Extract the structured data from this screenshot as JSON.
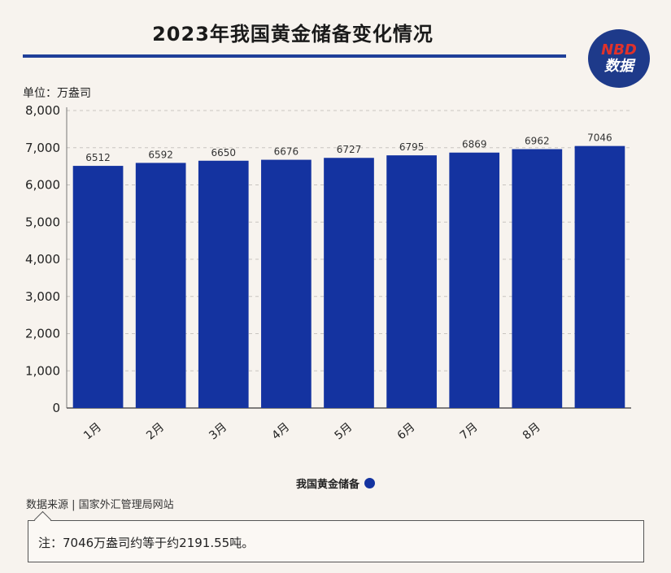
{
  "header": {
    "title": "2023年我国黄金储备变化情况",
    "logo_brand": "NBD",
    "logo_sub": "数据"
  },
  "unit_label": "单位：万盎司",
  "legend": {
    "label": "我国黄金储备"
  },
  "source": "数据来源 | 国家外汇管理局网站",
  "note": "注：7046万盎司约等于约2191.55吨。",
  "colors": {
    "bar": "#1433a0",
    "accent": "#1f3f99",
    "logo_red": "#e0322b"
  },
  "chart_data": {
    "type": "bar",
    "title": "2023年我国黄金储备变化情况",
    "ylabel": "单位：万盎司",
    "xlabel": "",
    "ylim": [
      0,
      8000
    ],
    "yticks": [
      0,
      1000,
      2000,
      3000,
      4000,
      5000,
      6000,
      7000,
      8000
    ],
    "ytick_labels": [
      "0",
      "1,000",
      "2,000",
      "3,000",
      "4,000",
      "5,000",
      "6,000",
      "7,000",
      "8,000"
    ],
    "categories": [
      "1月",
      "2月",
      "3月",
      "4月",
      "5月",
      "6月",
      "7月",
      "8月",
      ""
    ],
    "series": [
      {
        "name": "我国黄金储备",
        "values": [
          6512,
          6592,
          6650,
          6676,
          6727,
          6795,
          6869,
          6962,
          7046
        ]
      }
    ],
    "grid": true,
    "legend_position": "bottom-center"
  }
}
